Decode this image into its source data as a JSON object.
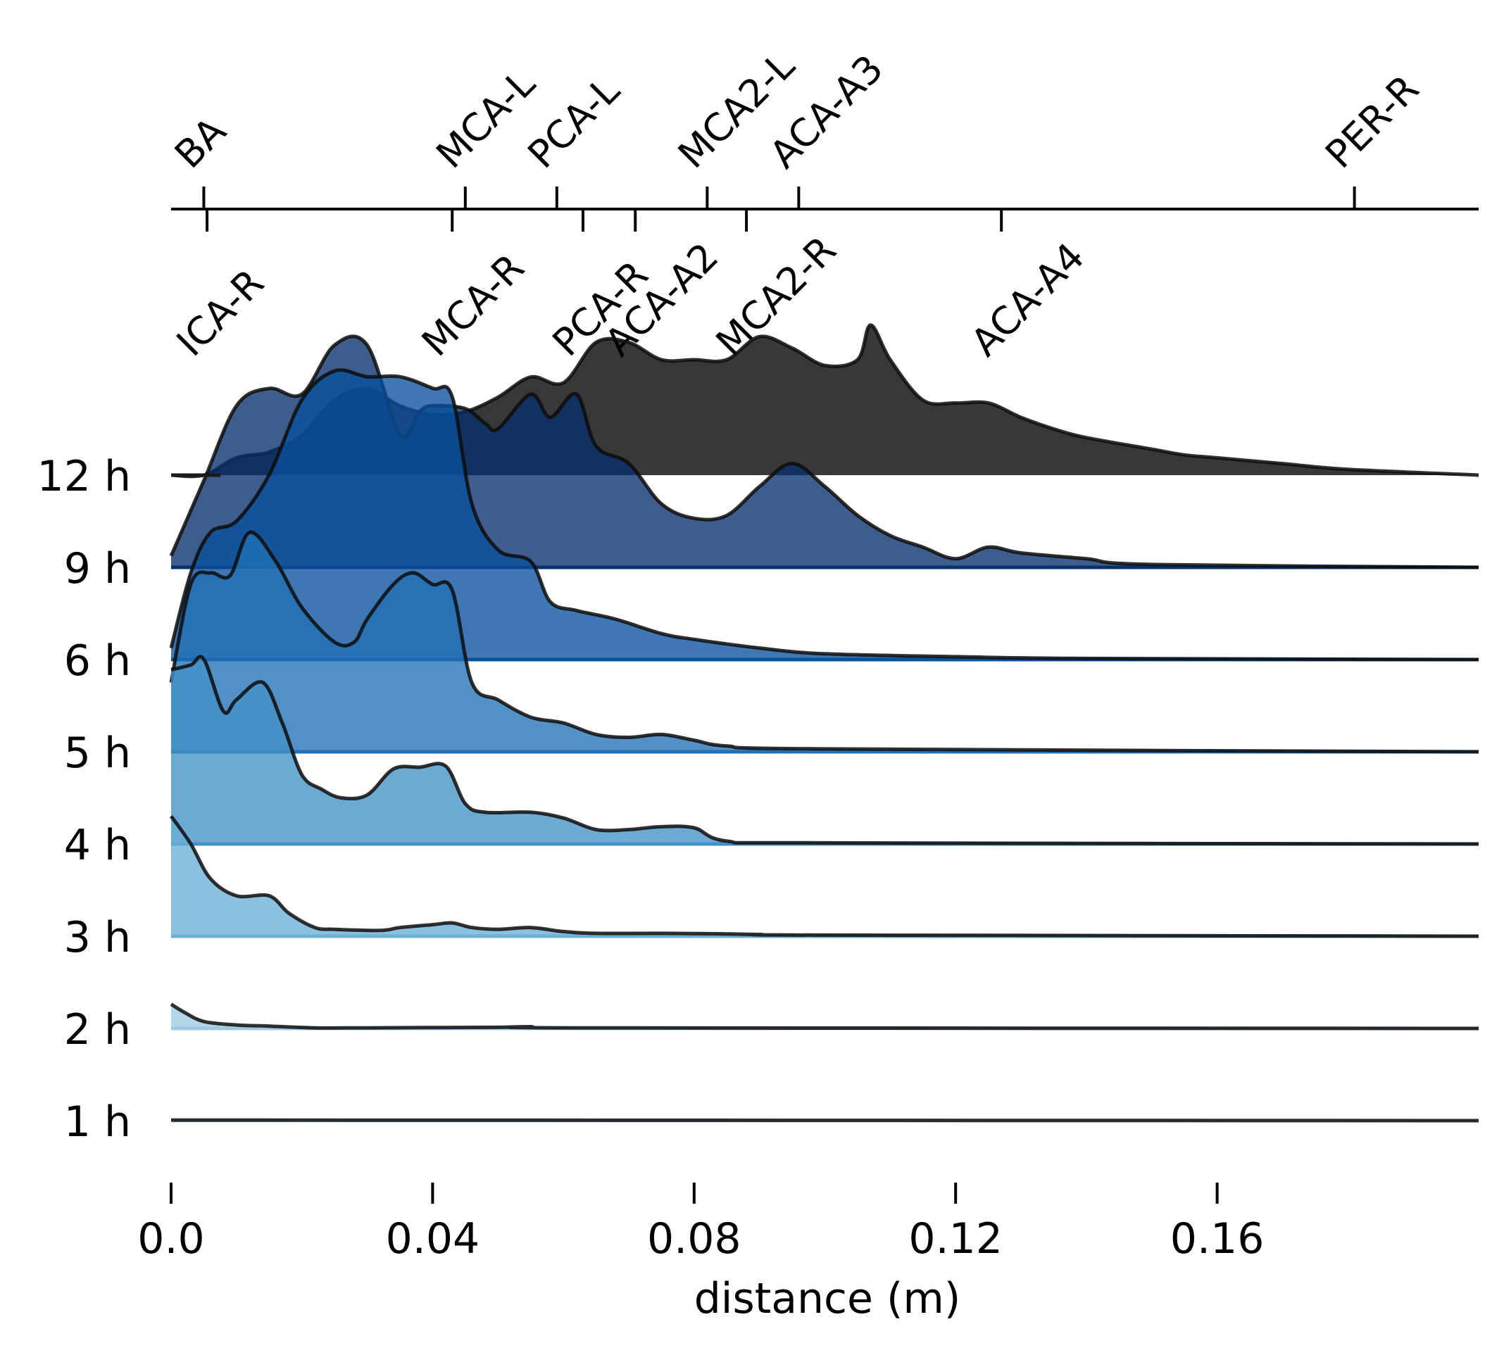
{
  "chart_data": {
    "type": "ridgeline",
    "xlabel": "distance (m)",
    "xlim": [
      0.0,
      0.2
    ],
    "x_ticks": [
      "0.0",
      "0.04",
      "0.08",
      "0.12",
      "0.16"
    ],
    "x_tick_values": [
      0.0,
      0.04,
      0.08,
      0.12,
      0.16
    ],
    "colors": {
      "fills": [
        "#c6dbef",
        "#9ecae1",
        "#6baed6",
        "#4292c6",
        "#2171b5",
        "#08519c",
        "#08306b"
      ],
      "line": "#000000"
    },
    "top_markers": [
      {
        "label": "BA",
        "x": 0.005
      },
      {
        "label": "MCA-L",
        "x": 0.045
      },
      {
        "label": "PCA-L",
        "x": 0.059
      },
      {
        "label": "MCA2-L",
        "x": 0.082
      },
      {
        "label": "ACA-A3",
        "x": 0.096
      },
      {
        "label": "PER-R",
        "x": 0.181
      }
    ],
    "bottom_markers": [
      {
        "label": "ICA-R",
        "x": 0.0055
      },
      {
        "label": "MCA-R",
        "x": 0.043
      },
      {
        "label": "PCA-R",
        "x": 0.063
      },
      {
        "label": "ACA-A2",
        "x": 0.071
      },
      {
        "label": "MCA2-R",
        "x": 0.088
      },
      {
        "label": "ACA-A4",
        "x": 0.127
      }
    ],
    "series": [
      {
        "name": "1 h",
        "points": [
          [
            0,
            0.01
          ],
          [
            0.2,
            0
          ]
        ]
      },
      {
        "name": "2 h",
        "points": [
          [
            0,
            0.42
          ],
          [
            0.002,
            0.28
          ],
          [
            0.005,
            0.12
          ],
          [
            0.01,
            0.06
          ],
          [
            0.015,
            0.04
          ],
          [
            0.022,
            0.01
          ],
          [
            0.03,
            0.01
          ],
          [
            0.04,
            0.015
          ],
          [
            0.05,
            0.02
          ],
          [
            0.055,
            0.03
          ],
          [
            0.065,
            0.01
          ],
          [
            0.2,
            0
          ]
        ]
      },
      {
        "name": "3 h",
        "points": [
          [
            0,
            2.08
          ],
          [
            0.003,
            1.6
          ],
          [
            0.006,
            1.0
          ],
          [
            0.01,
            0.7
          ],
          [
            0.015,
            0.7
          ],
          [
            0.018,
            0.4
          ],
          [
            0.022,
            0.15
          ],
          [
            0.025,
            0.12
          ],
          [
            0.032,
            0.1
          ],
          [
            0.035,
            0.15
          ],
          [
            0.04,
            0.2
          ],
          [
            0.043,
            0.23
          ],
          [
            0.046,
            0.15
          ],
          [
            0.05,
            0.12
          ],
          [
            0.055,
            0.15
          ],
          [
            0.06,
            0.08
          ],
          [
            0.065,
            0.05
          ],
          [
            0.075,
            0.05
          ],
          [
            0.085,
            0.04
          ],
          [
            0.09,
            0.03
          ],
          [
            0.1,
            0.02
          ],
          [
            0.2,
            0
          ]
        ]
      },
      {
        "name": "4 h",
        "points": [
          [
            0,
            3.02
          ],
          [
            0.003,
            3.1
          ],
          [
            0.005,
            3.2
          ],
          [
            0.008,
            2.3
          ],
          [
            0.01,
            2.5
          ],
          [
            0.014,
            2.8
          ],
          [
            0.017,
            2.1
          ],
          [
            0.02,
            1.2
          ],
          [
            0.023,
            0.95
          ],
          [
            0.026,
            0.8
          ],
          [
            0.03,
            0.85
          ],
          [
            0.034,
            1.3
          ],
          [
            0.038,
            1.33
          ],
          [
            0.042,
            1.35
          ],
          [
            0.045,
            0.7
          ],
          [
            0.048,
            0.55
          ],
          [
            0.055,
            0.55
          ],
          [
            0.06,
            0.45
          ],
          [
            0.065,
            0.25
          ],
          [
            0.07,
            0.25
          ],
          [
            0.075,
            0.3
          ],
          [
            0.08,
            0.28
          ],
          [
            0.085,
            0.05
          ],
          [
            0.1,
            0.02
          ],
          [
            0.2,
            0
          ]
        ]
      },
      {
        "name": "5 h",
        "points": [
          [
            0,
            1.2
          ],
          [
            0.003,
            2.9
          ],
          [
            0.006,
            3.1
          ],
          [
            0.009,
            3.05
          ],
          [
            0.012,
            3.8
          ],
          [
            0.016,
            3.3
          ],
          [
            0.02,
            2.5
          ],
          [
            0.025,
            1.9
          ],
          [
            0.028,
            1.9
          ],
          [
            0.03,
            2.3
          ],
          [
            0.034,
            2.9
          ],
          [
            0.037,
            3.1
          ],
          [
            0.04,
            2.9
          ],
          [
            0.043,
            2.8
          ],
          [
            0.046,
            1.2
          ],
          [
            0.05,
            0.9
          ],
          [
            0.055,
            0.6
          ],
          [
            0.06,
            0.5
          ],
          [
            0.065,
            0.3
          ],
          [
            0.07,
            0.25
          ],
          [
            0.075,
            0.3
          ],
          [
            0.08,
            0.2
          ],
          [
            0.085,
            0.1
          ],
          [
            0.1,
            0.05
          ],
          [
            0.2,
            0
          ]
        ]
      },
      {
        "name": "6 h",
        "points": [
          [
            0,
            0.2
          ],
          [
            0.003,
            1.5
          ],
          [
            0.006,
            2.2
          ],
          [
            0.01,
            2.4
          ],
          [
            0.015,
            3.2
          ],
          [
            0.02,
            4.5
          ],
          [
            0.025,
            5.0
          ],
          [
            0.03,
            4.9
          ],
          [
            0.035,
            4.9
          ],
          [
            0.04,
            4.7
          ],
          [
            0.043,
            4.55
          ],
          [
            0.046,
            2.7
          ],
          [
            0.05,
            1.9
          ],
          [
            0.055,
            1.7
          ],
          [
            0.058,
            1.0
          ],
          [
            0.062,
            0.85
          ],
          [
            0.068,
            0.7
          ],
          [
            0.075,
            0.45
          ],
          [
            0.08,
            0.35
          ],
          [
            0.09,
            0.2
          ],
          [
            0.1,
            0.1
          ],
          [
            0.12,
            0.05
          ],
          [
            0.14,
            0.02
          ],
          [
            0.2,
            0
          ]
        ]
      },
      {
        "name": "9 h",
        "points": [
          [
            0,
            0.2
          ],
          [
            0.005,
            1.5
          ],
          [
            0.01,
            2.8
          ],
          [
            0.015,
            3.1
          ],
          [
            0.02,
            3.0
          ],
          [
            0.025,
            3.85
          ],
          [
            0.03,
            3.85
          ],
          [
            0.035,
            2.3
          ],
          [
            0.038,
            2.7
          ],
          [
            0.04,
            2.8
          ],
          [
            0.045,
            2.75
          ],
          [
            0.048,
            2.5
          ],
          [
            0.05,
            2.4
          ],
          [
            0.055,
            3.0
          ],
          [
            0.058,
            2.6
          ],
          [
            0.062,
            3.0
          ],
          [
            0.065,
            2.1
          ],
          [
            0.07,
            1.8
          ],
          [
            0.075,
            1.1
          ],
          [
            0.08,
            0.85
          ],
          [
            0.085,
            0.9
          ],
          [
            0.09,
            1.4
          ],
          [
            0.095,
            1.8
          ],
          [
            0.1,
            1.4
          ],
          [
            0.105,
            0.9
          ],
          [
            0.11,
            0.55
          ],
          [
            0.115,
            0.35
          ],
          [
            0.12,
            0.15
          ],
          [
            0.125,
            0.35
          ],
          [
            0.13,
            0.25
          ],
          [
            0.14,
            0.15
          ],
          [
            0.15,
            0.05
          ],
          [
            0.2,
            0
          ]
        ]
      },
      {
        "name": "12 h",
        "points": [
          [
            0,
            0.0
          ],
          [
            0.005,
            0.0
          ],
          [
            0.01,
            0.3
          ],
          [
            0.015,
            0.4
          ],
          [
            0.02,
            0.7
          ],
          [
            0.025,
            1.3
          ],
          [
            0.03,
            1.5
          ],
          [
            0.035,
            1.2
          ],
          [
            0.04,
            1.05
          ],
          [
            0.045,
            1.1
          ],
          [
            0.05,
            1.35
          ],
          [
            0.055,
            1.7
          ],
          [
            0.06,
            1.6
          ],
          [
            0.065,
            2.3
          ],
          [
            0.07,
            2.3
          ],
          [
            0.075,
            2.0
          ],
          [
            0.08,
            2.0
          ],
          [
            0.085,
            2.0
          ],
          [
            0.09,
            2.4
          ],
          [
            0.095,
            2.2
          ],
          [
            0.1,
            1.9
          ],
          [
            0.105,
            2.0
          ],
          [
            0.107,
            2.6
          ],
          [
            0.11,
            2.0
          ],
          [
            0.115,
            1.3
          ],
          [
            0.12,
            1.25
          ],
          [
            0.125,
            1.25
          ],
          [
            0.13,
            1.0
          ],
          [
            0.135,
            0.8
          ],
          [
            0.14,
            0.65
          ],
          [
            0.15,
            0.45
          ],
          [
            0.155,
            0.35
          ],
          [
            0.16,
            0.3
          ],
          [
            0.17,
            0.2
          ],
          [
            0.18,
            0.1
          ],
          [
            0.2,
            0
          ]
        ]
      }
    ]
  }
}
